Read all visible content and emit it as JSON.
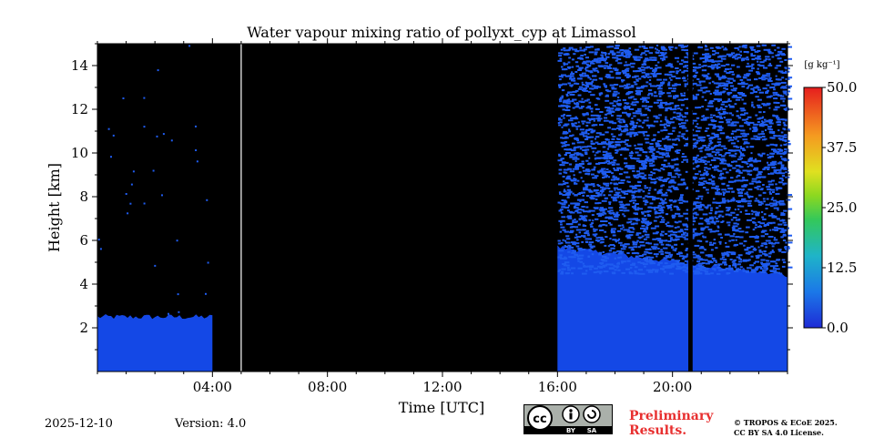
{
  "chart_data": {
    "type": "heatmap",
    "title": "Water vapour mixing ratio of pollyxt_cyp at Limassol",
    "xlabel": "Time [UTC]",
    "ylabel": "Height [km]",
    "xlim": [
      0,
      24
    ],
    "ylim": [
      0,
      15
    ],
    "x_ticks": [
      4,
      8,
      12,
      16,
      20
    ],
    "x_tick_labels": [
      "04:00",
      "08:00",
      "12:00",
      "16:00",
      "20:00"
    ],
    "y_ticks": [
      2,
      4,
      6,
      8,
      10,
      12,
      14
    ],
    "y_tick_labels": [
      "2",
      "4",
      "6",
      "8",
      "10",
      "12",
      "14"
    ],
    "colorbar": {
      "unit_label": "[g kg⁻¹]",
      "range": [
        0,
        50
      ],
      "ticks": [
        0,
        12.5,
        25,
        37.5,
        50
      ],
      "tick_labels": [
        "0.0",
        "12.5",
        "25.0",
        "37.5",
        "50.0"
      ]
    },
    "segments": [
      {
        "name": "night-segment",
        "t_start": 0.0,
        "t_end": 4.0,
        "boundary_layer_km": 2.5,
        "noise_top_km": 15.0,
        "noise_density": 0.01,
        "value_gkg": 4
      },
      {
        "name": "no-data-segment",
        "t_start": 4.0,
        "t_end": 16.0,
        "boundary_layer_km": 0,
        "noise_top_km": 0,
        "noise_density": 0,
        "value_gkg": 0
      },
      {
        "name": "evening-segment",
        "t_start": 16.0,
        "t_end": 24.0,
        "boundary_layer_km": 5.0,
        "noise_top_km": 15.0,
        "noise_density": 0.55,
        "value_gkg": 5
      }
    ],
    "white_line_time": 5.0,
    "dark_gap_times": [
      20.55,
      20.7
    ]
  },
  "footer": {
    "date": "2025-12-10",
    "version": "Version: 4.0",
    "preliminary_line1": "Preliminary",
    "preliminary_line2": "Results.",
    "copyright_line1": "© TROPOS & ECoE 2025.",
    "copyright_line2": "CC BY SA 4.0 License.",
    "cc_badge": {
      "cc": "cc",
      "by": "BY",
      "sa": "SA"
    }
  },
  "colors": {
    "background": "#000000",
    "water_vapour": "#1448e6",
    "noise": "#1f5cf0"
  }
}
